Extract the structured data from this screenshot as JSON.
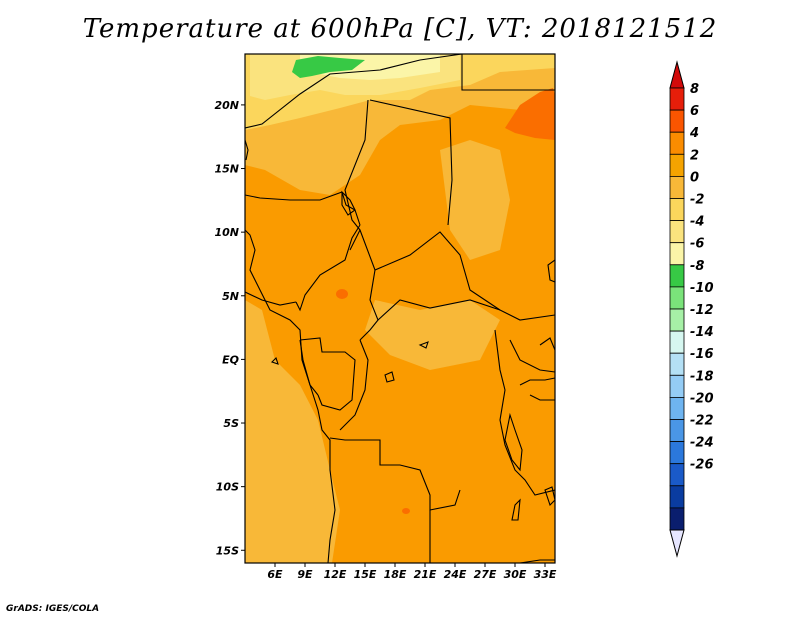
{
  "title": "Temperature at 600hPa [C], VT: 2018121512",
  "credit": "GrADS: IGES/COLA",
  "map": {
    "lon_range": [
      3,
      34
    ],
    "lat_range": [
      -16,
      24
    ],
    "lat_ticks": [
      "20N",
      "15N",
      "10N",
      "5N",
      "EQ",
      "5S",
      "10S",
      "15S"
    ],
    "lat_values": [
      20,
      15,
      10,
      5,
      0,
      -5,
      -10,
      -15
    ],
    "lon_ticks": [
      "6E",
      "9E",
      "12E",
      "15E",
      "18E",
      "21E",
      "24E",
      "27E",
      "30E",
      "33E"
    ],
    "lon_values": [
      6,
      9,
      12,
      15,
      18,
      21,
      24,
      27,
      30,
      33
    ]
  },
  "colorbar": {
    "labels": [
      "8",
      "6",
      "4",
      "2",
      "0",
      "-2",
      "-4",
      "-6",
      "-8",
      "-10",
      "-12",
      "-14",
      "-16",
      "-18",
      "-20",
      "-22",
      "-24",
      "-26"
    ],
    "colors": [
      "#e61e0a",
      "#fa5500",
      "#fa8c00",
      "#f5a300",
      "#f8b838",
      "#fbd65c",
      "#fae37e",
      "#fbf5a8",
      "#37c945",
      "#7ae37a",
      "#a6f0a6",
      "#d6f7f0",
      "#b4e0f5",
      "#94ccf5",
      "#6eb4f0",
      "#4a96e6",
      "#2b78dc",
      "#1a5ac8",
      "#0a3ca0",
      "#0a1e6e"
    ],
    "top_arrow_color": "#d20a0a",
    "bottom_arrow_color": "#e6e6ff"
  },
  "colors": {
    "field_main": "#fa9b00",
    "field_warm_2_4": "#f8b838",
    "field_0_2": "#fbd65c",
    "field_cold": "#fae37e",
    "field_coldest": "#fbf5a8",
    "field_green": "#37c945",
    "field_hot": "#fa6e00",
    "border": "#000000"
  }
}
